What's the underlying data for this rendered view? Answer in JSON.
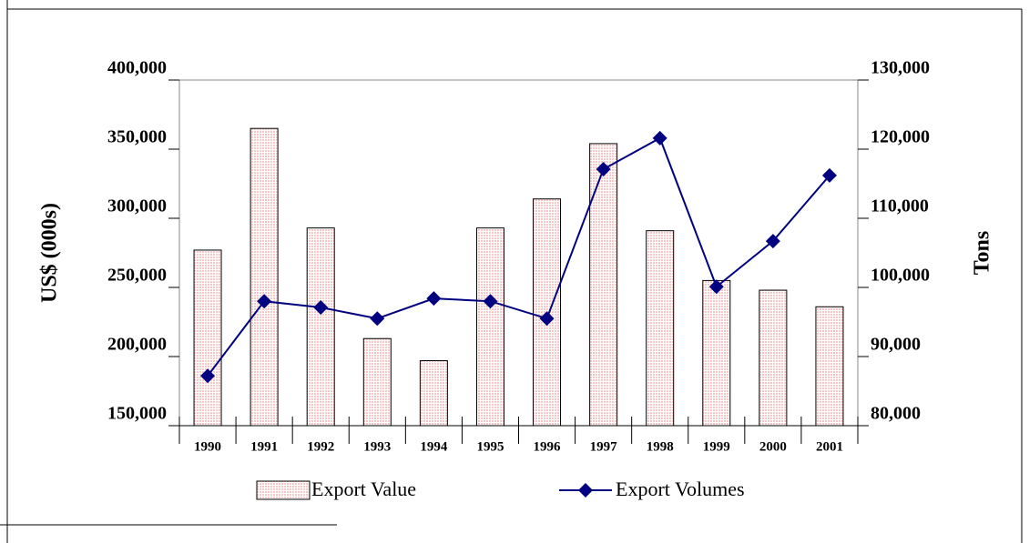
{
  "chart_data": {
    "type": "bar_line",
    "categories": [
      "1990",
      "1991",
      "1992",
      "1993",
      "1994",
      "1995",
      "1996",
      "1997",
      "1998",
      "1999",
      "2000",
      "2001"
    ],
    "ylabel": "US$ (000s)",
    "y2label": "Tons",
    "series": [
      {
        "name": "Export Value",
        "type": "bar",
        "color": "#f7c8c8",
        "values": [
          277000,
          365000,
          293000,
          213000,
          197000,
          293000,
          314000,
          354000,
          291000,
          255000,
          248000,
          236000
        ]
      },
      {
        "name": "Export Volumes",
        "type": "line",
        "axis": "y2",
        "color": "#000080",
        "values": [
          87200,
          98000,
          97100,
          95500,
          98400,
          98000,
          95500,
          117100,
          121600,
          100100,
          106700,
          116200
        ]
      }
    ],
    "ylim": [
      150000,
      400000
    ],
    "yticks": [
      {
        "value": 150000,
        "label": "150,000"
      },
      {
        "value": 200000,
        "label": "200,000"
      },
      {
        "value": 250000,
        "label": "250,000"
      },
      {
        "value": 300000,
        "label": "300,000"
      },
      {
        "value": 350000,
        "label": "350,000"
      },
      {
        "value": 400000,
        "label": "400,000"
      }
    ],
    "y2lim": [
      80000,
      130000
    ],
    "y2ticks": [
      {
        "value": 80000,
        "label": "80,000"
      },
      {
        "value": 90000,
        "label": "90,000"
      },
      {
        "value": 100000,
        "label": "100,000"
      },
      {
        "value": 110000,
        "label": "110,000"
      },
      {
        "value": 120000,
        "label": "120,000"
      },
      {
        "value": 130000,
        "label": "130,000"
      }
    ]
  }
}
